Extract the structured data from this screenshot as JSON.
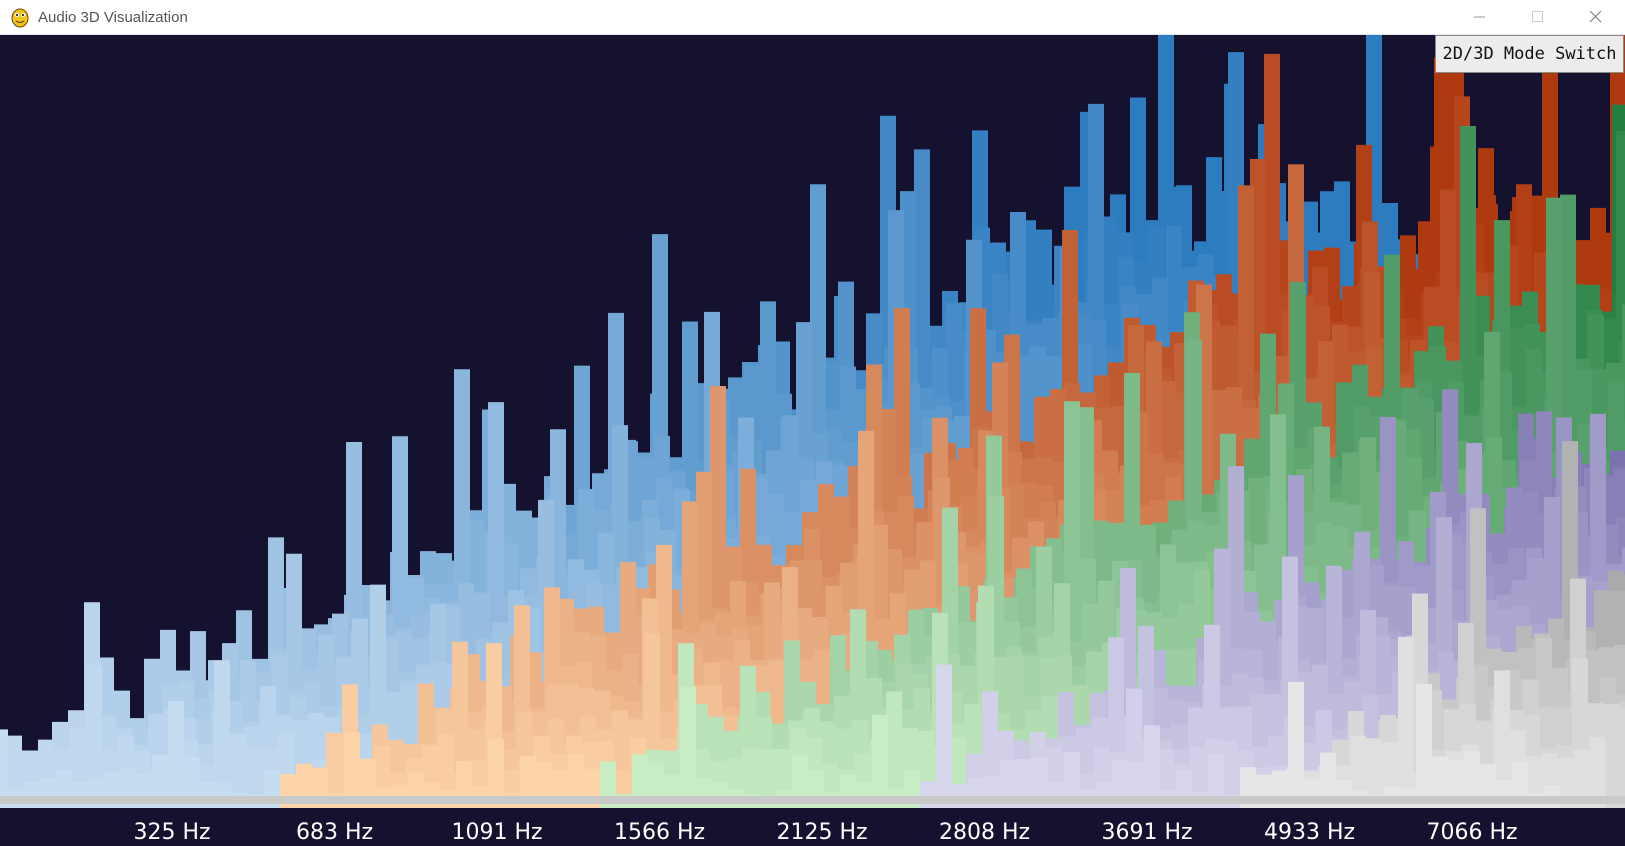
{
  "window": {
    "title": "Audio 3D Visualization",
    "app_icon": "pygame-snake-icon",
    "controls": [
      "minimize-icon",
      "maximize-icon",
      "close-icon"
    ]
  },
  "toolbar": {
    "mode_switch_label": "2D/3D Mode Switch"
  },
  "visualization": {
    "type": "3d-frequency-spectrum",
    "frequency_labels": [
      "325 Hz",
      "683 Hz",
      "1091 Hz",
      "1566 Hz",
      "2125 Hz",
      "2808 Hz",
      "3691 Hz",
      "4933 Hz",
      "7066 Hz"
    ],
    "bands": [
      {
        "name": "blues",
        "front": "#c6dcf0",
        "back": "#2e7cc0"
      },
      {
        "name": "oranges",
        "front": "#fcd4a8",
        "back": "#b03a10"
      },
      {
        "name": "greens",
        "front": "#c8ecc4",
        "back": "#1f7a3e"
      },
      {
        "name": "purples",
        "front": "#d8d6ec",
        "back": "#4a3f90"
      },
      {
        "name": "greys",
        "front": "#e6e6e6",
        "back": "#3c3c44"
      }
    ],
    "background_color": "#14122f"
  }
}
